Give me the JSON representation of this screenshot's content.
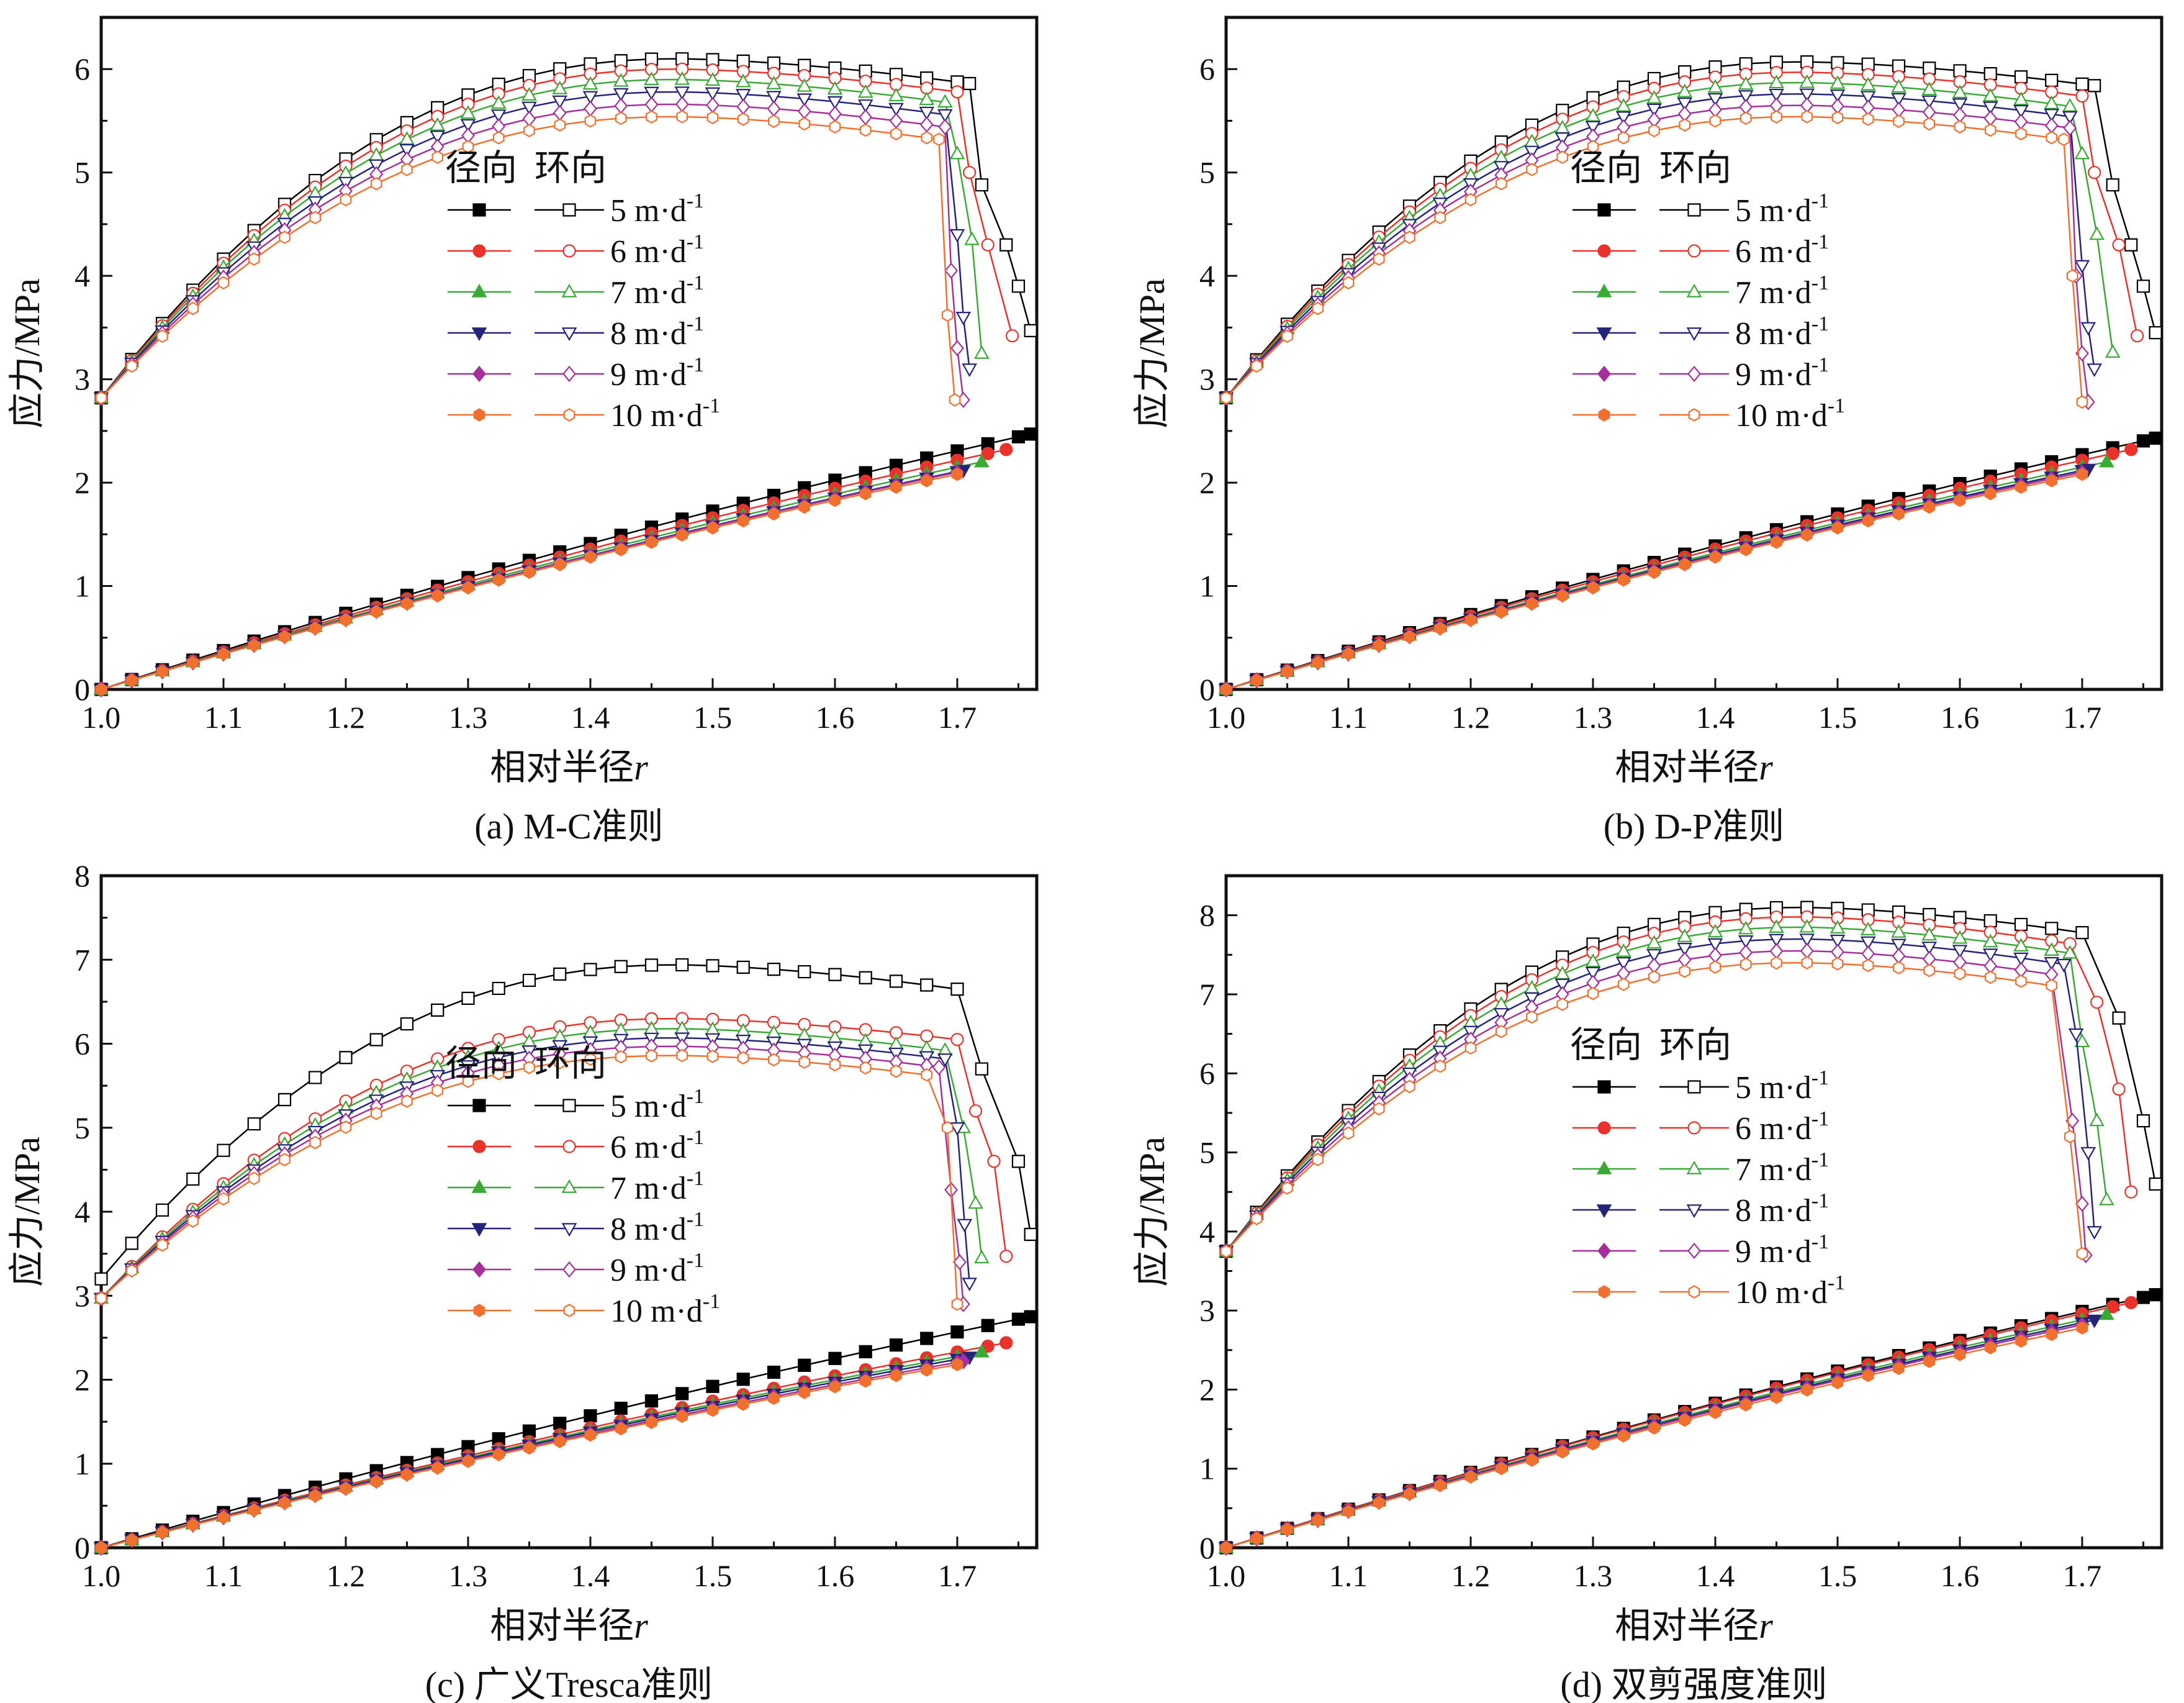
{
  "legend": {
    "header_radial": "径向",
    "header_hoop": "环向",
    "entries": [
      {
        "label": "5 m·d",
        "sup": "-1",
        "color": "#000000",
        "marker": "square"
      },
      {
        "label": "6 m·d",
        "sup": "-1",
        "color": "#e8322b",
        "marker": "circle"
      },
      {
        "label": "7 m·d",
        "sup": "-1",
        "color": "#3aa935",
        "marker": "triangle-up"
      },
      {
        "label": "8 m·d",
        "sup": "-1",
        "color": "#24247a",
        "marker": "triangle-down"
      },
      {
        "label": "9 m·d",
        "sup": "-1",
        "color": "#a5309b",
        "marker": "diamond"
      },
      {
        "label": "10 m·d",
        "sup": "-1",
        "color": "#f07030",
        "marker": "hexagon"
      }
    ]
  },
  "chart_data": [
    {
      "type": "line",
      "caption": "(a) M-C准则",
      "xlabel": "相对半径",
      "xlabel_italic": "r",
      "ylabel": "应力/MPa",
      "xlim": [
        1.0,
        1.765
      ],
      "ylim": [
        0,
        6.5
      ],
      "xticks": [
        "1.0",
        "1.1",
        "1.2",
        "1.3",
        "1.4",
        "1.5",
        "1.6",
        "1.7"
      ],
      "yticks": [
        "0",
        "1",
        "2",
        "3",
        "4",
        "5",
        "6"
      ],
      "series": [
        {
          "hoop": {
            "start": 2.82,
            "peak": 6.1,
            "end": 5.86,
            "drop_x": 1.71,
            "tail": [
              1.72,
              4.88,
              1.74,
              4.3,
              1.75,
              3.9,
              1.76,
              3.47
            ]
          },
          "radial_end": [
            1.76,
            2.47
          ]
        },
        {
          "hoop": {
            "start": 2.82,
            "peak": 6.0,
            "end": 5.78,
            "drop_x": 1.7,
            "tail": [
              1.71,
              5.0,
              1.725,
              4.3,
              1.745,
              3.42
            ]
          },
          "radial_end": [
            1.74,
            2.32
          ]
        },
        {
          "hoop": {
            "start": 2.82,
            "peak": 5.9,
            "end": 5.68,
            "drop_x": 1.69,
            "tail": [
              1.7,
              5.18,
              1.712,
              4.35,
              1.72,
              3.25
            ]
          },
          "radial_end": [
            1.72,
            2.2
          ]
        },
        {
          "hoop": {
            "start": 2.82,
            "peak": 5.78,
            "end": 5.56,
            "drop_x": 1.69,
            "tail": [
              1.7,
              4.4,
              1.705,
              3.6,
              1.71,
              3.1
            ]
          },
          "radial_end": [
            1.705,
            2.12
          ]
        },
        {
          "hoop": {
            "start": 2.82,
            "peak": 5.66,
            "end": 5.44,
            "drop_x": 1.69,
            "tail": [
              1.695,
              4.05,
              1.7,
              3.3,
              1.705,
              2.8
            ]
          },
          "radial_end": [
            1.7,
            2.1
          ]
        },
        {
          "hoop": {
            "start": 2.82,
            "peak": 5.54,
            "end": 5.32,
            "drop_x": 1.685,
            "tail": [
              1.692,
              3.62,
              1.698,
              2.8
            ]
          },
          "radial_end": [
            1.7,
            2.08
          ]
        }
      ],
      "radial_base_slope": 1.33
    },
    {
      "type": "line",
      "caption": "(b) D-P准则",
      "xlabel": "相对半径",
      "xlabel_italic": "r",
      "ylabel": "应力/MPa",
      "xlim": [
        1.0,
        1.765
      ],
      "ylim": [
        0,
        6.5
      ],
      "xticks": [
        "1.0",
        "1.1",
        "1.2",
        "1.3",
        "1.4",
        "1.5",
        "1.6",
        "1.7"
      ],
      "yticks": [
        "0",
        "1",
        "2",
        "3",
        "4",
        "5",
        "6"
      ],
      "series": [
        {
          "hoop": {
            "start": 2.82,
            "peak": 6.07,
            "end": 5.84,
            "drop_x": 1.71,
            "tail": [
              1.725,
              4.88,
              1.74,
              4.3,
              1.75,
              3.9,
              1.76,
              3.45
            ]
          },
          "radial_end": [
            1.76,
            2.43
          ]
        },
        {
          "hoop": {
            "start": 2.82,
            "peak": 5.97,
            "end": 5.74,
            "drop_x": 1.7,
            "tail": [
              1.71,
              5.0,
              1.73,
              4.3,
              1.745,
              3.42
            ]
          },
          "radial_end": [
            1.74,
            2.32
          ]
        },
        {
          "hoop": {
            "start": 2.82,
            "peak": 5.87,
            "end": 5.64,
            "drop_x": 1.69,
            "tail": [
              1.7,
              5.18,
              1.712,
              4.4,
              1.725,
              3.26
            ]
          },
          "radial_end": [
            1.72,
            2.2
          ]
        },
        {
          "hoop": {
            "start": 2.82,
            "peak": 5.76,
            "end": 5.54,
            "drop_x": 1.69,
            "tail": [
              1.7,
              4.1,
              1.705,
              3.5,
              1.71,
              3.1
            ]
          },
          "radial_end": [
            1.705,
            2.13
          ]
        },
        {
          "hoop": {
            "start": 2.82,
            "peak": 5.65,
            "end": 5.43,
            "drop_x": 1.69,
            "tail": [
              1.695,
              4.0,
              1.7,
              3.25,
              1.705,
              2.78
            ]
          },
          "radial_end": [
            1.7,
            2.1
          ]
        },
        {
          "hoop": {
            "start": 2.82,
            "peak": 5.54,
            "end": 5.32,
            "drop_x": 1.685,
            "tail": [
              1.692,
              4.0,
              1.7,
              2.78
            ]
          },
          "radial_end": [
            1.7,
            2.08
          ]
        }
      ],
      "radial_base_slope": 1.33
    },
    {
      "type": "line",
      "caption": "(c) 广义Tresca准则",
      "xlabel": "相对半径",
      "xlabel_italic": "r",
      "ylabel": "应力/MPa",
      "xlim": [
        1.0,
        1.765
      ],
      "ylim": [
        0,
        8
      ],
      "xticks": [
        "1.0",
        "1.1",
        "1.2",
        "1.3",
        "1.4",
        "1.5",
        "1.6",
        "1.7"
      ],
      "yticks": [
        "0",
        "1",
        "2",
        "3",
        "4",
        "5",
        "6",
        "7",
        "8"
      ],
      "series": [
        {
          "hoop": {
            "start": 3.2,
            "peak": 6.94,
            "end": 6.65,
            "drop_x": 1.7,
            "tail": [
              1.72,
              5.7,
              1.75,
              4.6,
              1.76,
              3.73
            ]
          },
          "radial_end": [
            1.76,
            2.75
          ]
        },
        {
          "hoop": {
            "start": 2.97,
            "peak": 6.3,
            "end": 6.05,
            "drop_x": 1.7,
            "tail": [
              1.715,
              5.2,
              1.73,
              4.6,
              1.74,
              3.47
            ]
          },
          "radial_end": [
            1.74,
            2.44
          ]
        },
        {
          "hoop": {
            "start": 2.97,
            "peak": 6.18,
            "end": 5.92,
            "drop_x": 1.69,
            "tail": [
              1.705,
              5.0,
              1.715,
              4.1,
              1.72,
              3.45
            ]
          },
          "radial_end": [
            1.72,
            2.33
          ]
        },
        {
          "hoop": {
            "start": 2.97,
            "peak": 6.07,
            "end": 5.82,
            "drop_x": 1.69,
            "tail": [
              1.7,
              5.0,
              1.706,
              3.85,
              1.71,
              3.15
            ]
          },
          "radial_end": [
            1.71,
            2.27
          ]
        },
        {
          "hoop": {
            "start": 2.97,
            "peak": 5.97,
            "end": 5.72,
            "drop_x": 1.685,
            "tail": [
              1.695,
              4.26,
              1.702,
              3.4,
              1.705,
              2.9
            ]
          },
          "radial_end": [
            1.705,
            2.22
          ]
        },
        {
          "hoop": {
            "start": 2.97,
            "peak": 5.86,
            "end": 5.62,
            "drop_x": 1.68,
            "tail": [
              1.692,
              5.0,
              1.7,
              2.9
            ]
          },
          "radial_end": [
            1.7,
            2.18
          ]
        }
      ],
      "radial_base_slope": 1.33,
      "radial_first_slope": 1.65
    },
    {
      "type": "line",
      "caption": "(d) 双剪强度准则",
      "xlabel": "相对半径",
      "xlabel_italic": "r",
      "ylabel": "应力/MPa",
      "xlim": [
        1.0,
        1.765
      ],
      "ylim": [
        0,
        8.5
      ],
      "xticks": [
        "1.0",
        "1.1",
        "1.2",
        "1.3",
        "1.4",
        "1.5",
        "1.6",
        "1.7"
      ],
      "yticks": [
        "0",
        "1",
        "2",
        "3",
        "4",
        "5",
        "6",
        "7",
        "8"
      ],
      "series": [
        {
          "hoop": {
            "start": 3.75,
            "peak": 8.1,
            "end": 7.78,
            "drop_x": 1.7,
            "tail": [
              1.73,
              6.7,
              1.75,
              5.4,
              1.76,
              4.6
            ]
          },
          "radial_end": [
            1.76,
            3.2
          ]
        },
        {
          "hoop": {
            "start": 3.75,
            "peak": 7.98,
            "end": 7.64,
            "drop_x": 1.69,
            "tail": [
              1.712,
              6.9,
              1.73,
              5.8,
              1.74,
              4.5
            ]
          },
          "radial_end": [
            1.74,
            3.1
          ]
        },
        {
          "hoop": {
            "start": 3.75,
            "peak": 7.85,
            "end": 7.52,
            "drop_x": 1.69,
            "tail": [
              1.7,
              6.4,
              1.712,
              5.4,
              1.72,
              4.4
            ]
          },
          "radial_end": [
            1.72,
            2.95
          ]
        },
        {
          "hoop": {
            "start": 3.75,
            "peak": 7.7,
            "end": 7.38,
            "drop_x": 1.685,
            "tail": [
              1.695,
              6.5,
              1.705,
              5.0,
              1.71,
              4.0
            ]
          },
          "radial_end": [
            1.71,
            2.88
          ]
        },
        {
          "hoop": {
            "start": 3.75,
            "peak": 7.55,
            "end": 7.24,
            "drop_x": 1.68,
            "tail": [
              1.692,
              5.4,
              1.7,
              4.35,
              1.703,
              3.7
            ]
          },
          "radial_end": [
            1.7,
            2.82
          ]
        },
        {
          "hoop": {
            "start": 3.75,
            "peak": 7.4,
            "end": 7.1,
            "drop_x": 1.68,
            "tail": [
              1.69,
              5.2,
              1.7,
              3.72
            ]
          },
          "radial_end": [
            1.7,
            2.78
          ]
        }
      ],
      "radial_base_slope": 1.85
    }
  ]
}
